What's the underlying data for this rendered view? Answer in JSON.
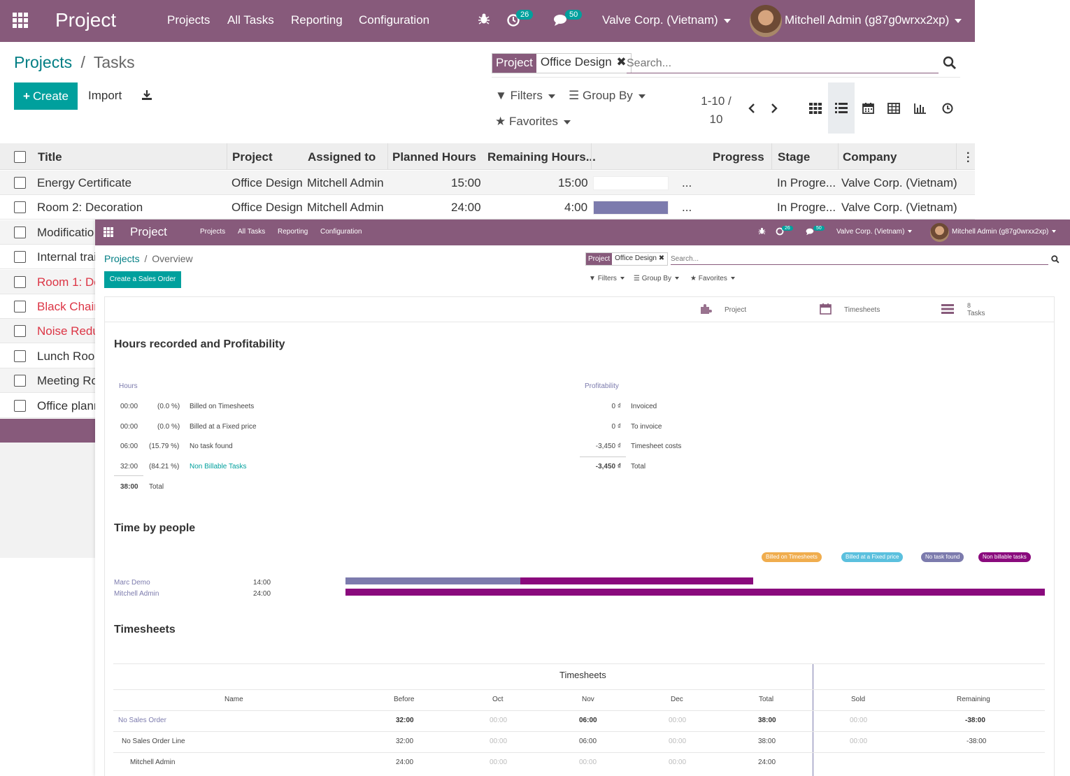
{
  "back": {
    "nav": {
      "brand": "Project",
      "menu": [
        "Projects",
        "All Tasks",
        "Reporting",
        "Configuration"
      ],
      "activity_count": "26",
      "message_count": "50",
      "company": "Valve Corp. (Vietnam)",
      "user": "Mitchell Admin (g87g0wrxx2xp)"
    },
    "breadcrumb": {
      "parent": "Projects",
      "sep": "/",
      "current": "Tasks"
    },
    "buttons": {
      "create": "Create",
      "import": "Import"
    },
    "search": {
      "facet_key": "Project",
      "facet_value": "Office Design",
      "placeholder": "Search..."
    },
    "toolbar": {
      "filters": "Filters",
      "group_by": "Group By",
      "favorites": "Favorites"
    },
    "pager": {
      "range": "1-10 /",
      "total": "10"
    },
    "columns": {
      "title": "Title",
      "project": "Project",
      "assigned": "Assigned to",
      "planned": "Planned Hours",
      "remaining": "Remaining Hours...",
      "progress": "Progress",
      "stage": "Stage",
      "company": "Company"
    },
    "rows": [
      {
        "title": "Energy Certificate",
        "project": "Office Design",
        "assigned": "Mitchell Admin",
        "planned": "15:00",
        "remaining": "15:00",
        "progress_fraction": 0.0,
        "dots": "...",
        "stage": "In Progre...",
        "company": "Valve Corp. (Vietnam)"
      },
      {
        "title": "Room 2: Decoration",
        "project": "Office Design",
        "assigned": "Mitchell Admin",
        "planned": "24:00",
        "remaining": "4:00",
        "progress_fraction": 1.0,
        "dots": "...",
        "stage": "In Progre...",
        "company": "Valve Corp. (Vietnam)"
      },
      {
        "title": "Modificatio"
      },
      {
        "title": "Internal trai"
      },
      {
        "title": "Room 1: De",
        "overdue": true
      },
      {
        "title": "Black Chair",
        "overdue": true
      },
      {
        "title": "Noise Redu",
        "overdue": true
      },
      {
        "title": "Lunch Roor"
      },
      {
        "title": "Meeting Ro"
      },
      {
        "title": "Office planr"
      }
    ]
  },
  "front": {
    "nav": {
      "brand": "Project",
      "menu": [
        "Projects",
        "All Tasks",
        "Reporting",
        "Configuration"
      ],
      "activity_count": "26",
      "message_count": "50",
      "company": "Valve Corp. (Vietnam)",
      "user": "Mitchell Admin (g87g0wrxx2xp)"
    },
    "breadcrumb": {
      "parent": "Projects",
      "sep": "/",
      "current": "Overview"
    },
    "create_so": "Create a Sales Order",
    "search": {
      "facet_key": "Project",
      "facet_value": "Office Design",
      "placeholder": "Search..."
    },
    "toolbar": {
      "filters": "Filters",
      "group_by": "Group By",
      "favorites": "Favorites"
    },
    "stats": {
      "project": "Project",
      "timesheets": "Timesheets",
      "tasks_count": "8",
      "tasks": "Tasks"
    },
    "hours_section": {
      "title": "Hours recorded and Profitability",
      "hours_label": "Hours",
      "rows": [
        {
          "time": "00:00",
          "pct": "(0.0 %)",
          "label": "Billed on Timesheets"
        },
        {
          "time": "00:00",
          "pct": "(0.0 %)",
          "label": "Billed at a Fixed price"
        },
        {
          "time": "06:00",
          "pct": "(15.79 %)",
          "label": "No task found"
        },
        {
          "time": "32:00",
          "pct": "(84.21 %)",
          "label": "Non Billable Tasks"
        }
      ],
      "total_time": "38:00",
      "total_label": "Total",
      "profit_label": "Profitability",
      "profit_rows": [
        {
          "amount": "0 ₫",
          "label": "Invoiced"
        },
        {
          "amount": "0 ₫",
          "label": "To invoice"
        },
        {
          "amount": "-3,450 ₫",
          "label": "Timesheet costs"
        }
      ],
      "profit_total": "-3,450 ₫",
      "profit_total_label": "Total"
    },
    "people_section": {
      "title": "Time by people",
      "legend": [
        {
          "label": "Billed on Timesheets",
          "color": "#f0ad4e"
        },
        {
          "label": "Billed at a Fixed price",
          "color": "#5bc0de"
        },
        {
          "label": "No task found",
          "color": "#7c7bad"
        },
        {
          "label": "Non billable tasks",
          "color": "#8a0a7d"
        }
      ],
      "people": [
        {
          "name": "Marc Demo",
          "time": "14:00",
          "no_task_hours": 6,
          "non_billable_hours": 8
        },
        {
          "name": "Mitchell Admin",
          "time": "24:00",
          "no_task_hours": 0,
          "non_billable_hours": 24
        }
      ],
      "max_hours": 24
    },
    "timesheets_section": {
      "title": "Timesheets",
      "group_header": "Timesheets",
      "columns": [
        "Name",
        "Before",
        "Oct",
        "Nov",
        "Dec",
        "Total",
        "Sold",
        "Remaining"
      ],
      "rows": [
        {
          "name": "No Sales Order",
          "before": "32:00",
          "oct": "00:00",
          "nov": "06:00",
          "dec": "00:00",
          "total": "38:00",
          "sold": "00:00",
          "remaining": "-38:00"
        },
        {
          "name": "No Sales Order Line",
          "before": "32:00",
          "oct": "00:00",
          "nov": "06:00",
          "dec": "00:00",
          "total": "38:00",
          "sold": "00:00",
          "remaining": "-38:00"
        },
        {
          "name": "Mitchell Admin",
          "before": "24:00",
          "oct": "00:00",
          "nov": "00:00",
          "dec": "00:00",
          "total": "24:00"
        }
      ]
    }
  }
}
